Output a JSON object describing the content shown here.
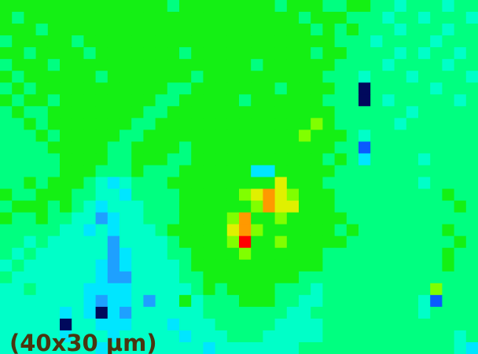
{
  "chart_data": {
    "type": "heatmap",
    "annotation": "(40x30 µm)",
    "zlim": [
      0,
      10
    ],
    "colormap": [
      "#00095c",
      "#0a5aff",
      "#1ea0ff",
      "#00e6ff",
      "#00ffc8",
      "#00ff80",
      "#14f014",
      "#80ff00",
      "#e0f000",
      "#ff9900",
      "#ff0000"
    ],
    "z": [
      [
        6,
        6,
        6,
        6,
        6,
        6,
        6,
        6,
        6,
        6,
        6,
        6,
        6,
        6,
        5,
        6,
        6,
        6,
        6,
        6,
        6,
        6,
        6,
        5,
        6,
        6,
        6,
        5,
        5,
        6,
        6,
        5,
        5,
        4,
        5,
        5,
        5,
        4,
        5,
        5
      ],
      [
        6,
        5,
        6,
        6,
        6,
        6,
        6,
        6,
        6,
        6,
        6,
        6,
        6,
        6,
        6,
        6,
        6,
        6,
        6,
        6,
        6,
        6,
        6,
        6,
        6,
        5,
        6,
        6,
        6,
        5,
        5,
        5,
        4,
        5,
        5,
        4,
        5,
        5,
        5,
        4
      ],
      [
        6,
        6,
        6,
        5,
        6,
        6,
        6,
        6,
        6,
        6,
        6,
        6,
        6,
        6,
        6,
        6,
        6,
        6,
        6,
        6,
        6,
        6,
        6,
        6,
        6,
        6,
        5,
        6,
        5,
        6,
        5,
        5,
        5,
        4,
        5,
        5,
        5,
        4,
        5,
        5
      ],
      [
        5,
        6,
        6,
        6,
        6,
        6,
        5,
        6,
        6,
        6,
        6,
        6,
        6,
        6,
        6,
        6,
        6,
        6,
        6,
        6,
        6,
        6,
        6,
        6,
        6,
        6,
        6,
        6,
        5,
        5,
        5,
        4,
        5,
        5,
        5,
        5,
        4,
        5,
        5,
        5
      ],
      [
        6,
        6,
        5,
        6,
        6,
        6,
        6,
        5,
        6,
        6,
        6,
        6,
        6,
        6,
        6,
        5,
        6,
        6,
        6,
        6,
        6,
        6,
        6,
        6,
        6,
        6,
        5,
        6,
        6,
        5,
        5,
        5,
        5,
        4,
        5,
        4,
        5,
        5,
        4,
        5
      ],
      [
        5,
        6,
        6,
        6,
        5,
        6,
        6,
        6,
        6,
        6,
        6,
        6,
        6,
        6,
        6,
        6,
        6,
        6,
        6,
        6,
        6,
        5,
        6,
        6,
        6,
        6,
        6,
        6,
        5,
        5,
        5,
        5,
        4,
        5,
        5,
        5,
        5,
        4,
        5,
        5
      ],
      [
        6,
        5,
        6,
        6,
        6,
        6,
        6,
        6,
        5,
        6,
        6,
        6,
        6,
        6,
        6,
        6,
        5,
        6,
        6,
        6,
        6,
        6,
        6,
        6,
        6,
        6,
        6,
        5,
        5,
        5,
        4,
        5,
        5,
        5,
        4,
        5,
        5,
        5,
        5,
        4
      ],
      [
        5,
        6,
        5,
        6,
        6,
        6,
        6,
        6,
        6,
        6,
        6,
        6,
        6,
        6,
        5,
        5,
        6,
        6,
        6,
        6,
        6,
        6,
        6,
        5,
        6,
        6,
        6,
        6,
        5,
        5,
        0,
        5,
        5,
        5,
        5,
        5,
        4,
        5,
        5,
        5
      ],
      [
        6,
        5,
        6,
        6,
        5,
        6,
        6,
        6,
        6,
        6,
        6,
        6,
        6,
        5,
        5,
        6,
        6,
        6,
        6,
        6,
        5,
        6,
        6,
        6,
        6,
        6,
        6,
        5,
        5,
        5,
        0,
        5,
        4,
        5,
        5,
        5,
        5,
        5,
        4,
        5
      ],
      [
        5,
        6,
        5,
        5,
        6,
        6,
        6,
        6,
        6,
        6,
        6,
        6,
        5,
        5,
        6,
        6,
        6,
        6,
        6,
        6,
        6,
        6,
        6,
        6,
        6,
        6,
        6,
        6,
        5,
        5,
        5,
        5,
        5,
        5,
        4,
        5,
        5,
        5,
        5,
        5
      ],
      [
        5,
        5,
        6,
        5,
        6,
        6,
        6,
        6,
        6,
        6,
        6,
        5,
        5,
        6,
        6,
        6,
        6,
        6,
        6,
        6,
        6,
        6,
        6,
        6,
        6,
        6,
        7,
        6,
        5,
        5,
        5,
        5,
        5,
        4,
        5,
        5,
        5,
        5,
        5,
        5
      ],
      [
        5,
        5,
        5,
        6,
        5,
        6,
        6,
        6,
        6,
        6,
        5,
        5,
        6,
        6,
        6,
        6,
        6,
        6,
        6,
        6,
        6,
        6,
        6,
        6,
        6,
        7,
        6,
        6,
        6,
        5,
        4,
        5,
        5,
        5,
        5,
        5,
        5,
        5,
        5,
        5
      ],
      [
        5,
        5,
        5,
        5,
        6,
        6,
        6,
        6,
        6,
        5,
        5,
        6,
        6,
        6,
        6,
        5,
        6,
        6,
        6,
        6,
        6,
        6,
        6,
        6,
        6,
        6,
        6,
        6,
        5,
        5,
        1,
        5,
        5,
        5,
        5,
        5,
        5,
        5,
        5,
        5
      ],
      [
        5,
        5,
        5,
        5,
        5,
        6,
        6,
        6,
        6,
        5,
        5,
        6,
        6,
        6,
        5,
        5,
        6,
        6,
        6,
        6,
        6,
        6,
        6,
        6,
        6,
        6,
        6,
        5,
        6,
        5,
        3,
        5,
        5,
        5,
        5,
        4,
        5,
        5,
        5,
        5
      ],
      [
        5,
        5,
        5,
        5,
        5,
        6,
        6,
        6,
        5,
        5,
        5,
        6,
        5,
        5,
        5,
        6,
        6,
        6,
        6,
        6,
        6,
        3,
        3,
        6,
        6,
        6,
        6,
        6,
        5,
        5,
        5,
        5,
        5,
        5,
        5,
        5,
        5,
        5,
        5,
        5
      ],
      [
        5,
        5,
        6,
        5,
        6,
        6,
        6,
        5,
        4,
        3,
        4,
        5,
        5,
        5,
        6,
        6,
        6,
        6,
        6,
        6,
        6,
        6,
        6,
        8,
        6,
        6,
        6,
        5,
        5,
        5,
        5,
        5,
        5,
        5,
        5,
        4,
        5,
        5,
        5,
        5
      ],
      [
        6,
        5,
        5,
        6,
        6,
        6,
        5,
        5,
        4,
        4,
        3,
        5,
        5,
        5,
        5,
        6,
        6,
        6,
        6,
        6,
        7,
        8,
        9,
        8,
        7,
        6,
        6,
        6,
        5,
        5,
        5,
        5,
        5,
        5,
        5,
        5,
        5,
        6,
        5,
        5
      ],
      [
        5,
        6,
        6,
        6,
        5,
        6,
        5,
        4,
        3,
        4,
        4,
        4,
        5,
        5,
        5,
        6,
        6,
        6,
        6,
        6,
        6,
        7,
        9,
        8,
        8,
        6,
        6,
        6,
        5,
        5,
        5,
        5,
        5,
        5,
        5,
        5,
        5,
        5,
        6,
        5
      ],
      [
        6,
        5,
        5,
        6,
        5,
        5,
        4,
        4,
        2,
        3,
        4,
        4,
        5,
        5,
        5,
        6,
        6,
        6,
        6,
        7,
        9,
        6,
        6,
        7,
        6,
        6,
        6,
        6,
        6,
        5,
        5,
        5,
        5,
        5,
        5,
        5,
        5,
        5,
        5,
        5
      ],
      [
        5,
        5,
        5,
        5,
        5,
        4,
        4,
        3,
        4,
        3,
        4,
        4,
        4,
        5,
        6,
        6,
        6,
        6,
        6,
        8,
        9,
        7,
        6,
        6,
        6,
        6,
        6,
        6,
        5,
        6,
        5,
        5,
        5,
        5,
        5,
        5,
        5,
        6,
        5,
        5
      ],
      [
        5,
        5,
        4,
        5,
        4,
        4,
        4,
        4,
        4,
        2,
        4,
        4,
        4,
        4,
        5,
        6,
        6,
        6,
        6,
        7,
        10,
        6,
        6,
        7,
        6,
        6,
        6,
        6,
        6,
        5,
        5,
        5,
        5,
        5,
        5,
        5,
        5,
        5,
        6,
        5
      ],
      [
        5,
        4,
        5,
        4,
        4,
        4,
        4,
        4,
        4,
        2,
        3,
        4,
        4,
        4,
        5,
        5,
        6,
        6,
        6,
        6,
        7,
        6,
        6,
        6,
        6,
        6,
        6,
        5,
        5,
        5,
        5,
        5,
        5,
        5,
        5,
        5,
        5,
        6,
        5,
        5
      ],
      [
        4,
        5,
        4,
        4,
        4,
        4,
        4,
        4,
        3,
        2,
        3,
        4,
        4,
        4,
        4,
        5,
        6,
        6,
        6,
        6,
        6,
        6,
        6,
        6,
        6,
        6,
        6,
        5,
        5,
        5,
        5,
        5,
        5,
        5,
        5,
        5,
        5,
        6,
        5,
        5
      ],
      [
        5,
        4,
        4,
        4,
        4,
        4,
        4,
        4,
        3,
        2,
        2,
        4,
        4,
        4,
        4,
        5,
        5,
        6,
        6,
        6,
        6,
        6,
        6,
        6,
        6,
        5,
        5,
        5,
        5,
        5,
        5,
        5,
        5,
        5,
        5,
        5,
        5,
        5,
        5,
        5
      ],
      [
        4,
        4,
        5,
        4,
        4,
        4,
        4,
        3,
        3,
        3,
        3,
        4,
        4,
        4,
        4,
        4,
        5,
        6,
        5,
        6,
        6,
        6,
        6,
        5,
        5,
        5,
        4,
        5,
        5,
        5,
        5,
        5,
        5,
        5,
        5,
        5,
        7,
        5,
        5,
        5
      ],
      [
        4,
        4,
        4,
        4,
        4,
        4,
        4,
        3,
        2,
        3,
        3,
        4,
        2,
        4,
        4,
        6,
        4,
        5,
        5,
        5,
        6,
        6,
        6,
        5,
        5,
        4,
        4,
        5,
        5,
        5,
        5,
        5,
        5,
        5,
        5,
        4,
        1,
        5,
        5,
        5
      ],
      [
        4,
        4,
        4,
        4,
        4,
        3,
        4,
        3,
        0,
        3,
        2,
        4,
        4,
        4,
        4,
        4,
        4,
        5,
        5,
        5,
        5,
        5,
        5,
        5,
        4,
        4,
        5,
        5,
        5,
        5,
        5,
        5,
        5,
        5,
        5,
        4,
        5,
        5,
        5,
        5
      ],
      [
        4,
        4,
        4,
        4,
        4,
        0,
        4,
        4,
        3,
        3,
        3,
        4,
        4,
        4,
        3,
        4,
        4,
        4,
        5,
        5,
        5,
        5,
        5,
        4,
        4,
        4,
        4,
        5,
        5,
        5,
        5,
        5,
        5,
        5,
        5,
        5,
        5,
        5,
        5,
        5
      ],
      [
        4,
        4,
        4,
        4,
        4,
        3,
        4,
        4,
        4,
        3,
        4,
        4,
        4,
        4,
        4,
        3,
        4,
        4,
        4,
        5,
        5,
        5,
        4,
        4,
        4,
        4,
        4,
        5,
        5,
        5,
        5,
        5,
        5,
        5,
        5,
        5,
        5,
        5,
        4,
        5
      ],
      [
        4,
        4,
        4,
        4,
        4,
        4,
        4,
        4,
        3,
        4,
        4,
        4,
        4,
        4,
        4,
        4,
        4,
        3,
        4,
        4,
        4,
        4,
        4,
        4,
        4,
        5,
        5,
        5,
        5,
        5,
        5,
        5,
        5,
        5,
        5,
        5,
        5,
        5,
        4,
        3
      ]
    ]
  }
}
